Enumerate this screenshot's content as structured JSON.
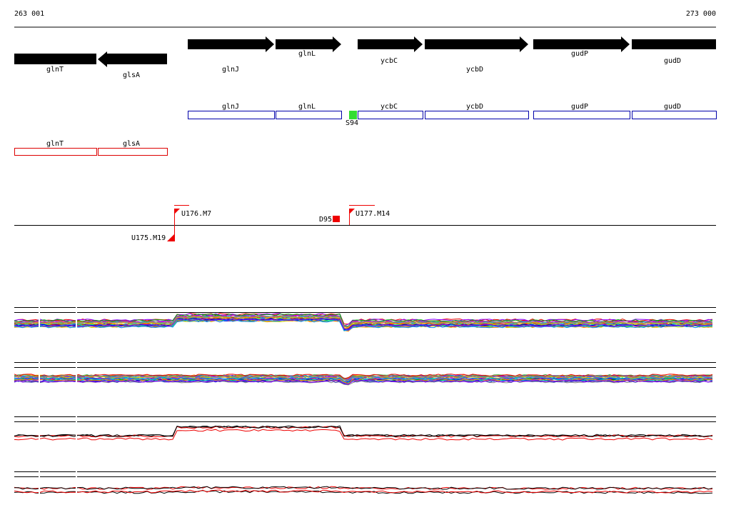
{
  "axis": {
    "start": "263 001",
    "end": "273 000"
  },
  "genes": [
    "glnT",
    "glsA",
    "glnJ",
    "glnL",
    "ycbC",
    "ycbD",
    "gudP",
    "gudD"
  ],
  "blue_boxes": [
    "glnJ",
    "glnL",
    "ycbC",
    "ycbD",
    "gudP",
    "gudD"
  ],
  "site": "S94",
  "red_boxes": [
    "glnT",
    "glsA"
  ],
  "markers": [
    "U176.M7",
    "D95",
    "U177.M14",
    "U175.M19"
  ]
}
